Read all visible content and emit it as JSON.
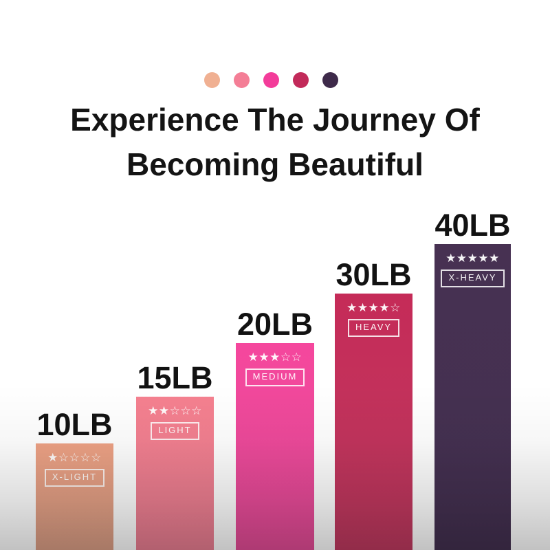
{
  "page": {
    "background": "#FFFFFF",
    "bottom_fade_color": "rgba(0,0,0,0.24)"
  },
  "palette_dots": {
    "colors": [
      "#F0B092",
      "#F47E96",
      "#F33C9A",
      "#C22A5A",
      "#3E2A4A"
    ]
  },
  "title": {
    "line1": "Experience The Journey Of",
    "line2": "Becoming Beautiful",
    "color": "#141414"
  },
  "chart_data": {
    "type": "bar",
    "title": "Experience The Journey Of Becoming Beautiful",
    "unit": "LB",
    "categories": [
      "X-LIGHT",
      "LIGHT",
      "MEDIUM",
      "HEAVY",
      "X-HEAVY"
    ],
    "values": [
      10,
      15,
      20,
      30,
      40
    ],
    "star_ratings": [
      1,
      2,
      3,
      4,
      5
    ],
    "grid": false,
    "legend_position": "none",
    "bars": [
      {
        "weight_label": "10LB",
        "level": "X-LIGHT",
        "stars": 1,
        "stars_display": "★☆☆☆☆",
        "color_top": "#EDA184",
        "color_bottom": "#DC9F86"
      },
      {
        "weight_label": "15LB",
        "level": "LIGHT",
        "stars": 2,
        "stars_display": "★★☆☆☆",
        "color_top": "#F5808F",
        "color_bottom": "#EA7E92"
      },
      {
        "weight_label": "20LB",
        "level": "MEDIUM",
        "stars": 3,
        "stars_display": "★★★☆☆",
        "color_top": "#F5479D",
        "color_bottom": "#E44C97"
      },
      {
        "weight_label": "30LB",
        "level": "HEAVY",
        "stars": 4,
        "stars_display": "★★★★☆",
        "color_top": "#C52B58",
        "color_bottom": "#C03A60"
      },
      {
        "weight_label": "40LB",
        "level": "X-HEAVY",
        "stars": 5,
        "stars_display": "★★★★★",
        "color_top": "#473152",
        "color_bottom": "#433050"
      }
    ]
  }
}
